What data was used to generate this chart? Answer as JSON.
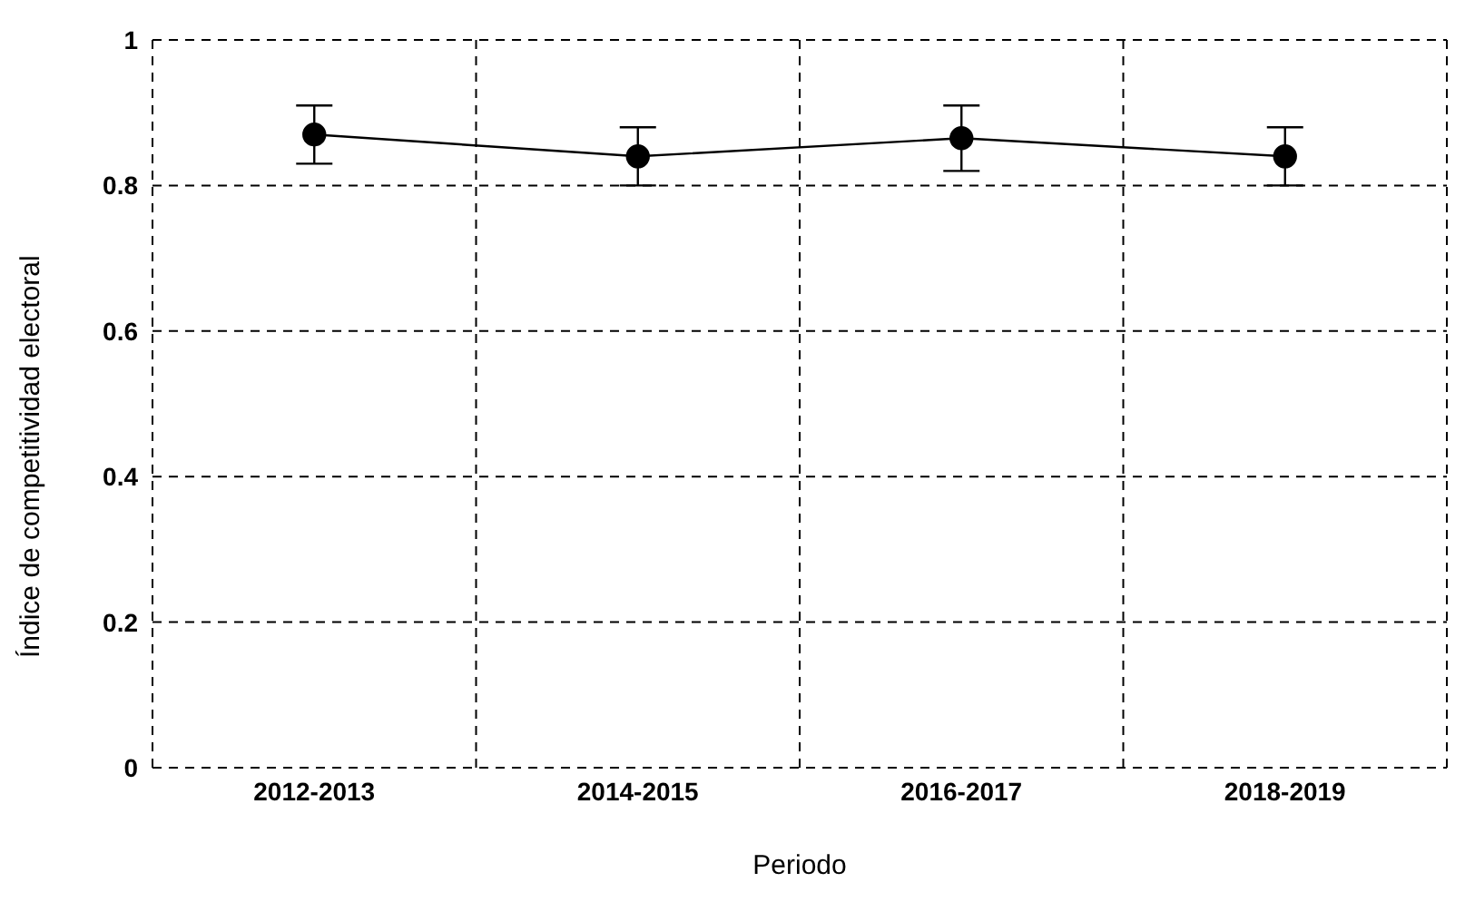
{
  "chart_data": {
    "type": "line",
    "xlabel": "Periodo",
    "ylabel": "Índice de competitividad electoral",
    "categories": [
      "2012-2013",
      "2014-2015",
      "2016-2017",
      "2018-2019"
    ],
    "series": [
      {
        "color": "#000000",
        "values": [
          0.87,
          0.84,
          0.865,
          0.84
        ],
        "errors": [
          0.04,
          0.04,
          0.045,
          0.04
        ]
      }
    ],
    "ylim": [
      0,
      1
    ],
    "yticks": [
      0,
      0.2,
      0.4,
      0.6,
      0.8,
      1
    ],
    "grid": true,
    "marker": "circle",
    "line_style": "solid"
  }
}
